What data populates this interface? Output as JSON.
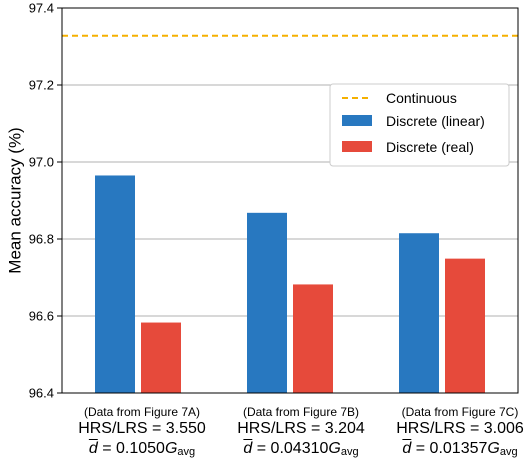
{
  "chart_data": {
    "type": "bar",
    "ylabel": "Mean accuracy (%)",
    "ylim": [
      96.4,
      97.4
    ],
    "yticks": [
      "96.4",
      "96.6",
      "96.8",
      "97.0",
      "97.2",
      "97.4"
    ],
    "grid": "horizontal",
    "legend_position": "right",
    "categories": [
      {
        "source": "(Data from Figure 7A)",
        "ratio": "HRS/LRS = 3.550",
        "d_value": "0.1050",
        "d_sym": "d",
        "g_sym": "G",
        "g_sub": "avg"
      },
      {
        "source": "(Data from Figure 7B)",
        "ratio": "HRS/LRS = 3.204",
        "d_value": "0.04310",
        "d_sym": "d",
        "g_sym": "G",
        "g_sub": "avg"
      },
      {
        "source": "(Data from Figure 7C)",
        "ratio": "HRS/LRS = 3.006",
        "d_value": "0.01357",
        "d_sym": "d",
        "g_sym": "G",
        "g_sub": "avg"
      }
    ],
    "series": [
      {
        "name": "Discrete (linear)",
        "color": "#2878c0",
        "values": [
          96.965,
          96.868,
          96.815
        ]
      },
      {
        "name": "Discrete (real)",
        "color": "#e64a3b",
        "values": [
          96.583,
          96.682,
          96.749
        ]
      }
    ],
    "reference_line": {
      "name": "Continuous",
      "value": 97.328,
      "color": "#f5b000",
      "style": "dashed"
    }
  }
}
